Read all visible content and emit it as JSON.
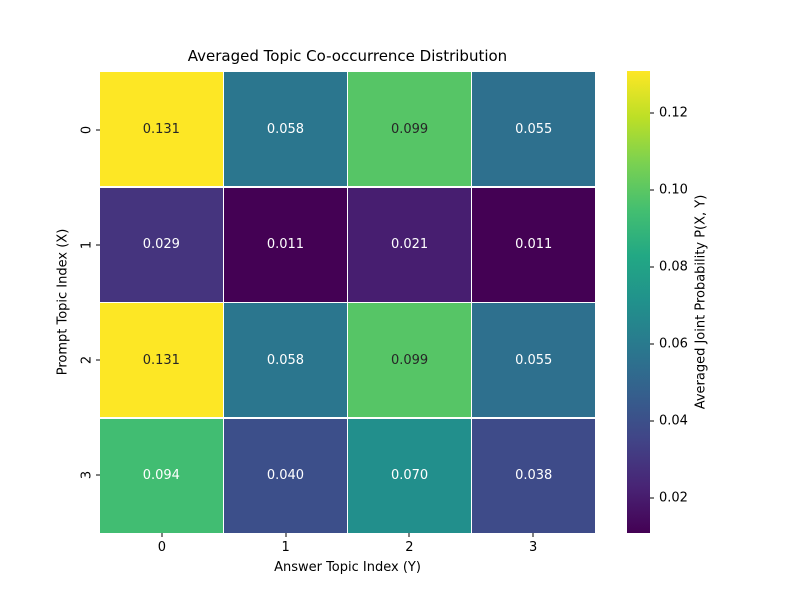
{
  "chart_data": {
    "type": "heatmap",
    "title": "Averaged Topic Co-occurrence Distribution",
    "xlabel": "Answer Topic Index (Y)",
    "ylabel": "Prompt Topic Index (X)",
    "x_ticklabels": [
      "0",
      "1",
      "2",
      "3"
    ],
    "y_ticklabels": [
      "0",
      "1",
      "2",
      "3"
    ],
    "rows": [
      [
        0.131,
        0.058,
        0.099,
        0.055
      ],
      [
        0.029,
        0.011,
        0.021,
        0.011
      ],
      [
        0.131,
        0.058,
        0.099,
        0.055
      ],
      [
        0.094,
        0.04,
        0.07,
        0.038
      ]
    ],
    "annot_decimals": 3,
    "colormap": "viridis",
    "vmin": 0.011,
    "vmax": 0.131,
    "grid_line_color": "#ffffff",
    "colorbar": {
      "label": "Averaged Joint Probability P(X, Y)",
      "ticks": [
        0.02,
        0.04,
        0.06,
        0.08,
        0.1,
        0.12
      ],
      "tick_decimals": 2
    }
  },
  "colors": {
    "background": "#ffffff",
    "annot_dark": "#262626",
    "annot_light": "#ffffff",
    "axis_text": "#000000",
    "viridis_stops": [
      "#440154",
      "#482475",
      "#414487",
      "#355f8d",
      "#2a788e",
      "#21918c",
      "#22a884",
      "#44bf70",
      "#7ad151",
      "#bddf26",
      "#fde725"
    ]
  }
}
